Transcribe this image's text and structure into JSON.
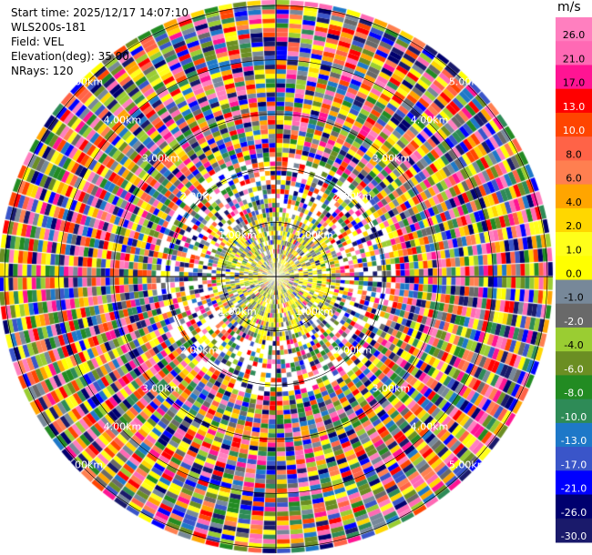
{
  "info": {
    "start_time": "Start time: 2025/12/17 14:07:10",
    "station": "WLS200s-181",
    "field": "Field: VEL",
    "elevation": "Elevation(deg): 35.00",
    "nrays": "NRays: 120"
  },
  "chart_data": {
    "type": "ppi",
    "field": "VEL",
    "units": "m/s",
    "n_rays": 120,
    "elevation_deg": 35.0,
    "max_range_km": 5.0,
    "range_rings_km": [
      1,
      2,
      3,
      4,
      5
    ],
    "range_labels": [
      "1.00km",
      "2.00km",
      "3.00km",
      "4.00km",
      "5.00km"
    ],
    "colorbar": {
      "title": "m/s",
      "boundaries": [
        -30,
        -26,
        -21,
        -17,
        -13,
        -10,
        -8,
        -6,
        -4,
        -2,
        -1,
        0,
        1,
        2,
        4,
        6,
        8,
        10,
        13,
        17,
        21,
        26,
        30
      ],
      "tick_labels": [
        "26.0",
        "21.0",
        "17.0",
        "13.0",
        "10.0",
        "8.0",
        "6.0",
        "4.0",
        "2.0",
        "1.0",
        "0.0",
        "-1.0",
        "-2.0",
        "-4.0",
        "-6.0",
        "-8.0",
        "-10.0",
        "-13.0",
        "-17.0",
        "-21.0",
        "-26.0",
        "-30.0"
      ],
      "colors": [
        "#1a1a6b",
        "#00006e",
        "#0000ff",
        "#3a55c9",
        "#1e78c8",
        "#2e8b57",
        "#228b22",
        "#6b8e23",
        "#9acd32",
        "#696969",
        "#778899",
        "#ffff00",
        "#ffff1a",
        "#ffd700",
        "#ffa500",
        "#ff7f50",
        "#ff6347",
        "#ff4500",
        "#ff0000",
        "#ff1493",
        "#ff69b4",
        "#ff7fbf"
      ]
    }
  }
}
